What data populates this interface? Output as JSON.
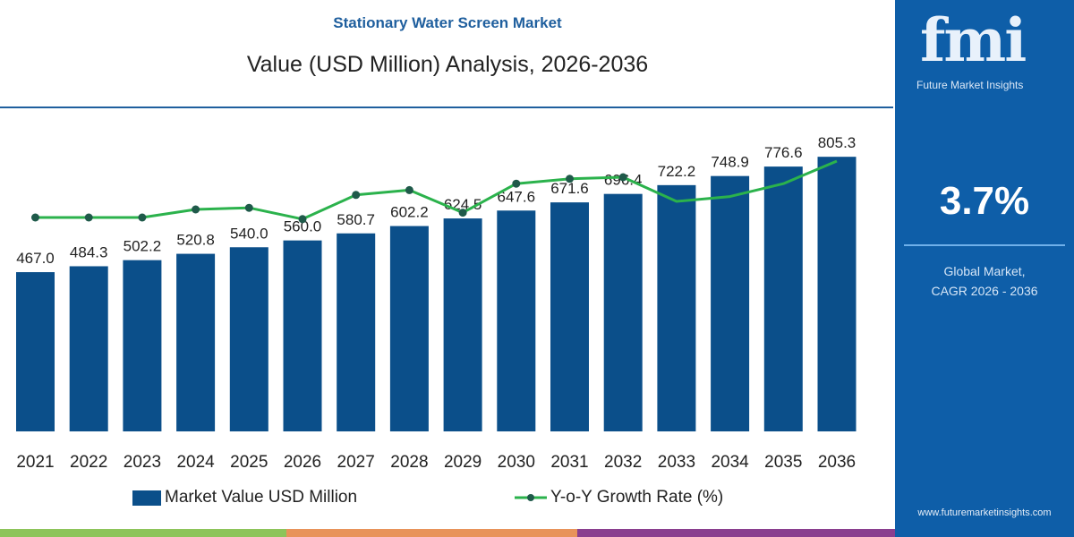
{
  "header": {
    "title": "Stationary Water Screen Market",
    "subtitle": "Value (USD Million) Analysis, 2026-2036"
  },
  "chart_data": {
    "type": "bar",
    "title": "Stationary Water Screen Market",
    "subtitle": "Value (USD Million) Analysis, 2026-2036",
    "categories": [
      "2021",
      "2022",
      "2023",
      "2024",
      "2025",
      "2026",
      "2027",
      "2028",
      "2029",
      "2030",
      "2031",
      "2032",
      "2033",
      "2034",
      "2035",
      "2036"
    ],
    "series": [
      {
        "name": "Market Value USD Million",
        "type": "bar",
        "color": "#0b4f8a",
        "values": [
          467.0,
          484.3,
          502.2,
          520.8,
          540.0,
          560.0,
          580.7,
          602.2,
          624.5,
          647.6,
          671.6,
          696.4,
          722.2,
          748.9,
          776.6,
          805.3
        ],
        "labels": [
          "467.0",
          "484.3",
          "502.2",
          "520.8",
          "540.0",
          "560.0",
          "580.7",
          "602.2",
          "624.5",
          "647.6",
          "671.6",
          "696.4",
          "722.2",
          "748.9",
          "776.6",
          "805.3"
        ]
      },
      {
        "name": "Y-o-Y Growth Rate (%)",
        "type": "line",
        "color": "#2bb24c",
        "values": [
          3.6,
          3.6,
          3.6,
          3.65,
          3.66,
          3.59,
          3.74,
          3.77,
          3.63,
          3.81,
          3.84,
          3.85,
          3.7,
          3.73,
          3.81,
          3.95
        ]
      }
    ],
    "ylim": [
      0,
      850
    ],
    "grid": false,
    "legend": "bottom"
  },
  "legend": {
    "bar": "Market Value USD Million",
    "line": "Y-o-Y Growth Rate (%)"
  },
  "panel": {
    "logo": "fmi",
    "logo_sub": "Future Market Insights",
    "cagr": "3.7%",
    "caption1": "Global Market,",
    "caption2": "CAGR 2026 - 2036",
    "url": "www.futuremarketinsights.com"
  },
  "colors": {
    "accent": "#0e5ea8",
    "bar": "#0b4f8a",
    "line": "#2bb24c",
    "stripe": [
      "#8dc45a",
      "#e8935a",
      "#8a3f8f"
    ]
  }
}
